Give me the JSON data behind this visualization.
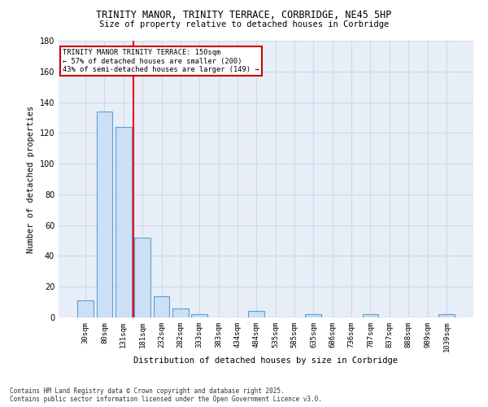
{
  "title_line1": "TRINITY MANOR, TRINITY TERRACE, CORBRIDGE, NE45 5HP",
  "title_line2": "Size of property relative to detached houses in Corbridge",
  "xlabel": "Distribution of detached houses by size in Corbridge",
  "ylabel": "Number of detached properties",
  "bar_values": [
    11,
    134,
    124,
    52,
    14,
    6,
    2,
    0,
    0,
    4,
    0,
    0,
    2,
    0,
    0,
    2,
    0,
    0,
    0,
    2
  ],
  "bar_labels": [
    "30sqm",
    "80sqm",
    "131sqm",
    "181sqm",
    "232sqm",
    "282sqm",
    "333sqm",
    "383sqm",
    "434sqm",
    "484sqm",
    "535sqm",
    "585sqm",
    "635sqm",
    "686sqm",
    "736sqm",
    "787sqm",
    "837sqm",
    "888sqm",
    "989sqm",
    "1039sqm"
  ],
  "bar_color": "#cce0f5",
  "bar_edge_color": "#5a9fd4",
  "red_line_x": 2.5,
  "annotation_text": "TRINITY MANOR TRINITY TERRACE: 150sqm\n← 57% of detached houses are smaller (200)\n43% of semi-detached houses are larger (149) →",
  "annotation_box_color": "#ffffff",
  "annotation_box_edge_color": "#cc0000",
  "grid_color": "#d0d8e8",
  "bg_color": "#e8eef8",
  "ylim": [
    0,
    180
  ],
  "yticks": [
    0,
    20,
    40,
    60,
    80,
    100,
    120,
    140,
    160,
    180
  ],
  "footer_line1": "Contains HM Land Registry data © Crown copyright and database right 2025.",
  "footer_line2": "Contains public sector information licensed under the Open Government Licence v3.0."
}
